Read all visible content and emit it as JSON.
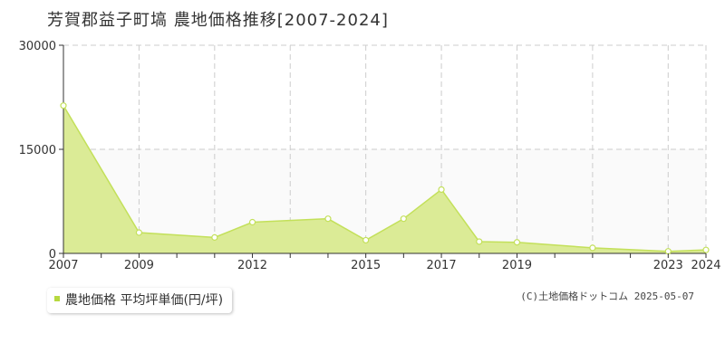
{
  "colors": {
    "area_fill": "#dbeb96",
    "line": "#c3e05a",
    "marker_fill": "#ffffff",
    "upper_band": "#fafafa",
    "grid": "#cccccc",
    "legend_swatch": "#b7d940"
  },
  "chart_data": {
    "type": "area",
    "title": "芳賀郡益子町塙 農地価格推移[2007-2024]",
    "xlabel": "",
    "ylabel": "",
    "xlim": [
      2007,
      2024
    ],
    "ylim": [
      0,
      30000
    ],
    "yticks": [
      0,
      15000,
      30000
    ],
    "xticks": [
      2007,
      2009,
      2012,
      2015,
      2017,
      2019,
      2023,
      2024
    ],
    "grid": true,
    "legend_position": "bottom-left",
    "series": [
      {
        "name": "農地価格 平均坪単価(円/坪)",
        "x": [
          2007,
          2009,
          2011,
          2012,
          2014,
          2015,
          2016,
          2017,
          2018,
          2019,
          2021,
          2023,
          2024
        ],
        "y": [
          21300,
          3000,
          2300,
          4500,
          5000,
          1900,
          5000,
          9200,
          1700,
          1600,
          800,
          300,
          500
        ]
      }
    ]
  },
  "legend": {
    "label": "農地価格 平均坪単価(円/坪)"
  },
  "credit": "(C)土地価格ドットコム 2025-05-07"
}
